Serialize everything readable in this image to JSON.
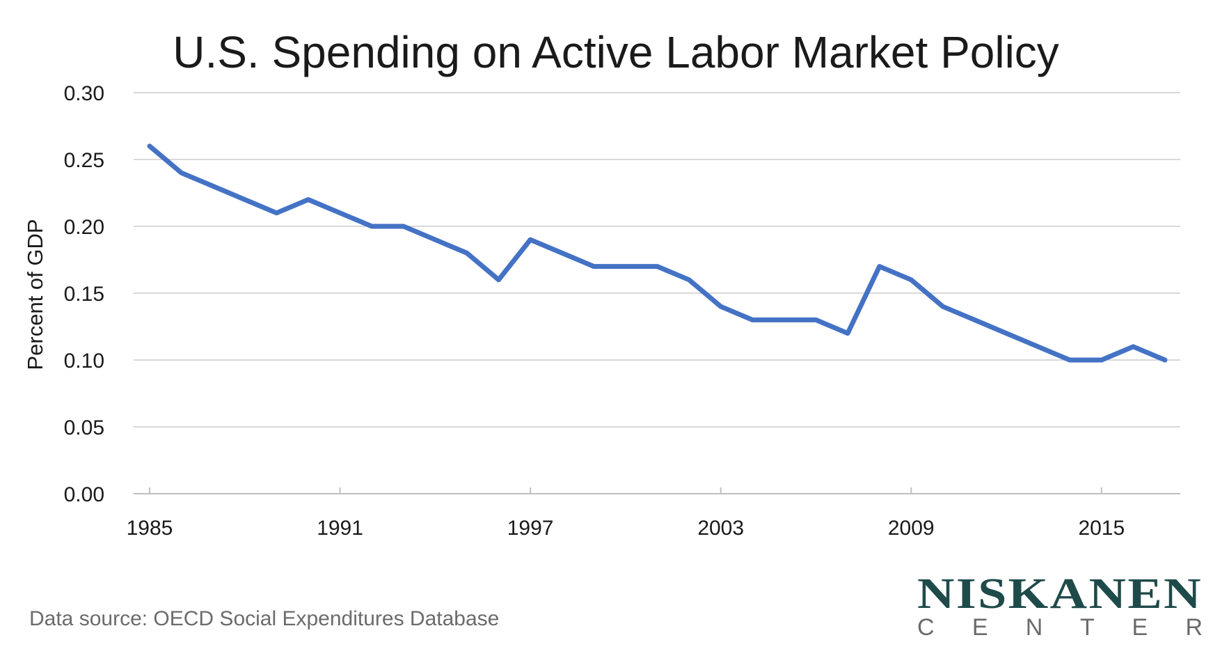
{
  "chart_data": {
    "type": "line",
    "title": "U.S. Spending on Active Labor Market Policy",
    "ylabel": "Percent of GDP",
    "xlabel": "",
    "ylim": [
      0,
      0.3
    ],
    "xlim": [
      1985,
      2017
    ],
    "x_ticks": [
      "1985",
      "1991",
      "1997",
      "2003",
      "2009",
      "2015"
    ],
    "y_ticks": [
      "0.00",
      "0.05",
      "0.10",
      "0.15",
      "0.20",
      "0.25",
      "0.30"
    ],
    "grid": true,
    "series": [
      {
        "color": "#4472c4",
        "points": [
          {
            "x": 1985,
            "y": 0.26
          },
          {
            "x": 1986,
            "y": 0.24
          },
          {
            "x": 1987,
            "y": 0.23
          },
          {
            "x": 1988,
            "y": 0.22
          },
          {
            "x": 1989,
            "y": 0.21
          },
          {
            "x": 1990,
            "y": 0.22
          },
          {
            "x": 1991,
            "y": 0.21
          },
          {
            "x": 1992,
            "y": 0.2
          },
          {
            "x": 1993,
            "y": 0.2
          },
          {
            "x": 1994,
            "y": 0.19
          },
          {
            "x": 1995,
            "y": 0.18
          },
          {
            "x": 1996,
            "y": 0.16
          },
          {
            "x": 1997,
            "y": 0.19
          },
          {
            "x": 1998,
            "y": 0.18
          },
          {
            "x": 1999,
            "y": 0.17
          },
          {
            "x": 2000,
            "y": 0.17
          },
          {
            "x": 2001,
            "y": 0.17
          },
          {
            "x": 2002,
            "y": 0.16
          },
          {
            "x": 2003,
            "y": 0.14
          },
          {
            "x": 2004,
            "y": 0.13
          },
          {
            "x": 2005,
            "y": 0.13
          },
          {
            "x": 2006,
            "y": 0.13
          },
          {
            "x": 2007,
            "y": 0.12
          },
          {
            "x": 2008,
            "y": 0.17
          },
          {
            "x": 2009,
            "y": 0.16
          },
          {
            "x": 2010,
            "y": 0.14
          },
          {
            "x": 2011,
            "y": 0.13
          },
          {
            "x": 2012,
            "y": 0.12
          },
          {
            "x": 2013,
            "y": 0.11
          },
          {
            "x": 2014,
            "y": 0.1
          },
          {
            "x": 2015,
            "y": 0.1
          },
          {
            "x": 2016,
            "y": 0.11
          },
          {
            "x": 2017,
            "y": 0.1
          }
        ]
      }
    ]
  },
  "footer": {
    "source": "Data source: OECD Social Expenditures Database"
  },
  "logo": {
    "main": "NISKANEN",
    "sub": "C E N T E R"
  },
  "colors": {
    "series": "#4472c4",
    "logo": "#1f4a4a"
  }
}
